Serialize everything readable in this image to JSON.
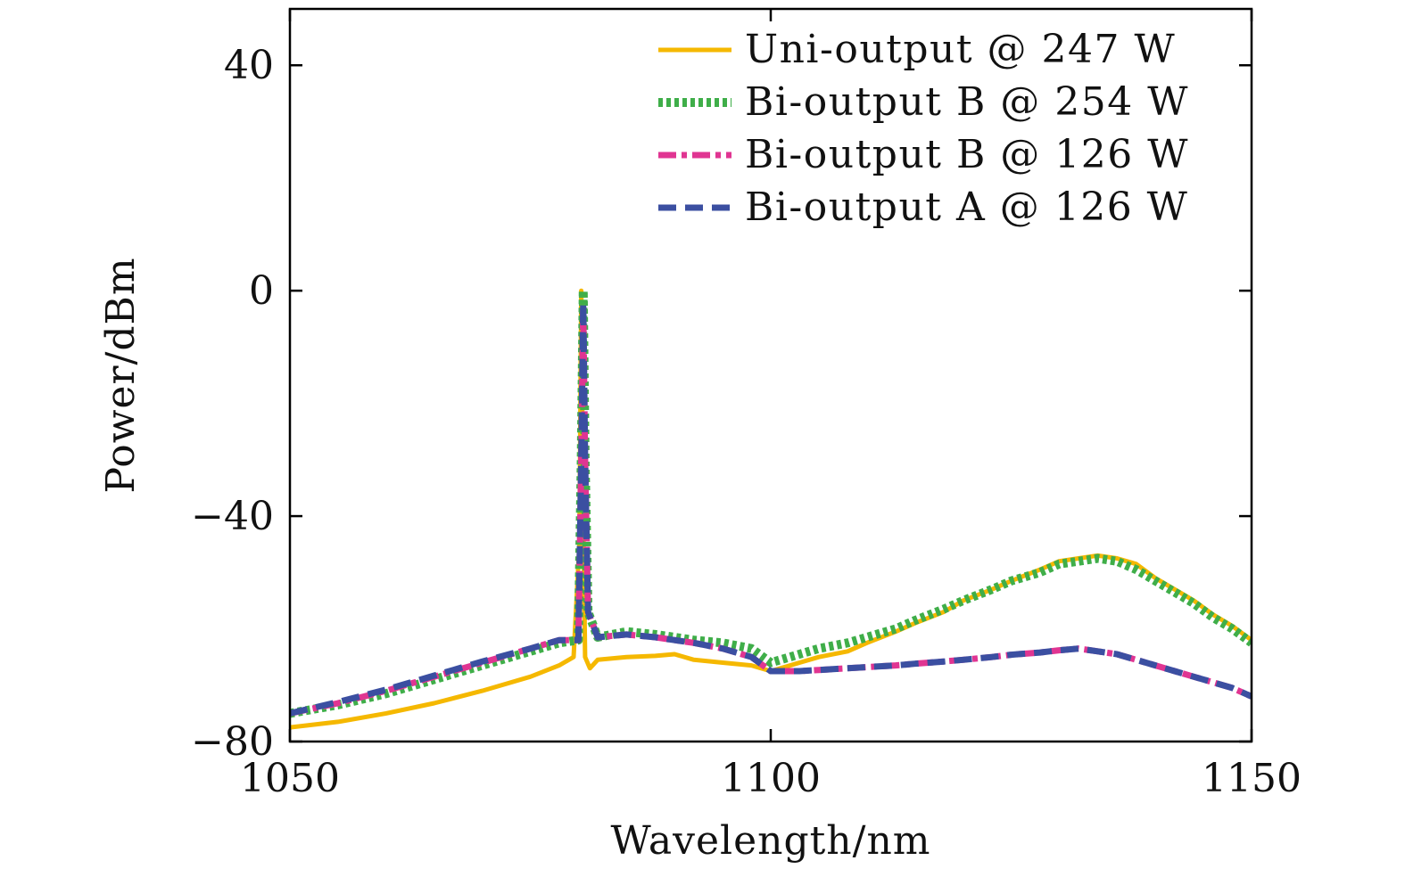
{
  "chart_data": {
    "type": "line",
    "title": "",
    "xlabel": "Wavelength/nm",
    "ylabel": "Power/dBm",
    "xlim": [
      1050,
      1150
    ],
    "ylim": [
      -80,
      50
    ],
    "xticks": [
      1050,
      1100,
      1150
    ],
    "xtick_labels": [
      "1050",
      "1100",
      "1150"
    ],
    "yticks": [
      -80,
      -40,
      0,
      40
    ],
    "ytick_labels": [
      "−80",
      "−40",
      "0",
      "40"
    ],
    "grid": false,
    "legend_position": "top-right",
    "series": [
      {
        "name": "Uni-output @ 247 W",
        "color": "#f5b800",
        "dash": "solid",
        "x": [
          1050,
          1055,
          1060,
          1065,
          1070,
          1075,
          1078,
          1079.5,
          1080.1,
          1080.3,
          1080.5,
          1080.7,
          1081.2,
          1082,
          1085,
          1088,
          1090,
          1092,
          1095,
          1098,
          1100,
          1103,
          1105,
          1108,
          1110,
          1113,
          1115,
          1118,
          1120,
          1123,
          1125,
          1128,
          1130,
          1132,
          1134,
          1136,
          1138,
          1140,
          1142,
          1144,
          1146,
          1148,
          1150
        ],
        "y": [
          -77.5,
          -76.5,
          -75,
          -73.2,
          -71,
          -68.5,
          -66.5,
          -65,
          -45,
          0,
          -40,
          -65,
          -67,
          -65.5,
          -65,
          -64.8,
          -64.5,
          -65.5,
          -66,
          -66.5,
          -67.5,
          -66,
          -65,
          -64,
          -62.5,
          -60.5,
          -59,
          -57,
          -55,
          -53,
          -51.5,
          -49.5,
          -48,
          -47.5,
          -47,
          -47.5,
          -48.5,
          -51,
          -53,
          -55,
          -57.5,
          -59.5,
          -62
        ]
      },
      {
        "name": "Bi-output B @ 254 W",
        "color": "#3fae49",
        "dash": "dotted",
        "x": [
          1050,
          1055,
          1060,
          1065,
          1070,
          1075,
          1078,
          1080,
          1080.3,
          1080.5,
          1080.7,
          1081,
          1082,
          1085,
          1088,
          1090,
          1092,
          1095,
          1098,
          1100,
          1103,
          1105,
          1108,
          1110,
          1113,
          1115,
          1118,
          1120,
          1123,
          1125,
          1128,
          1130,
          1132,
          1134,
          1136,
          1138,
          1140,
          1142,
          1144,
          1146,
          1148,
          1150
        ],
        "y": [
          -75,
          -73.5,
          -71.5,
          -69,
          -66.5,
          -64,
          -62.5,
          -62,
          -30,
          0,
          -30,
          -57,
          -61.5,
          -60.5,
          -61,
          -61.5,
          -62,
          -62.5,
          -63.5,
          -66,
          -64.5,
          -63.5,
          -62.5,
          -61.5,
          -60,
          -58.5,
          -56.5,
          -55,
          -53,
          -51.5,
          -50,
          -48.5,
          -48,
          -47.5,
          -48,
          -49.5,
          -51.5,
          -53.5,
          -55.5,
          -58,
          -60,
          -62.5
        ]
      },
      {
        "name": "Bi-output B @ 126 W",
        "color": "#e03592",
        "dash": "dashdot",
        "x": [
          1050,
          1055,
          1060,
          1065,
          1070,
          1075,
          1078,
          1080,
          1080.3,
          1080.5,
          1080.7,
          1081,
          1082,
          1085,
          1088,
          1090,
          1092,
          1095,
          1098,
          1100,
          1103,
          1105,
          1108,
          1110,
          1113,
          1115,
          1118,
          1120,
          1123,
          1125,
          1128,
          1130,
          1132,
          1134,
          1136,
          1138,
          1140,
          1142,
          1144,
          1146,
          1148,
          1150
        ],
        "y": [
          -75,
          -73.2,
          -71,
          -68.5,
          -66,
          -63.5,
          -62,
          -62,
          -30,
          -3,
          -30,
          -57,
          -61.5,
          -61,
          -61.5,
          -62,
          -62.5,
          -63.5,
          -65,
          -67.5,
          -67.5,
          -67.3,
          -67,
          -66.8,
          -66.5,
          -66.2,
          -65.8,
          -65.5,
          -65,
          -64.6,
          -64.2,
          -63.8,
          -63.5,
          -64,
          -64.5,
          -65.5,
          -66.5,
          -67.5,
          -68.5,
          -69.5,
          -70.5,
          -72
        ]
      },
      {
        "name": "Bi-output A @ 126 W",
        "color": "#3b4fa1",
        "dash": "dashed",
        "x": [
          1050,
          1055,
          1060,
          1065,
          1070,
          1075,
          1078,
          1080,
          1080.3,
          1080.5,
          1080.7,
          1081,
          1082,
          1085,
          1088,
          1090,
          1092,
          1095,
          1098,
          1100,
          1103,
          1105,
          1108,
          1110,
          1113,
          1115,
          1118,
          1120,
          1123,
          1125,
          1128,
          1130,
          1132,
          1134,
          1136,
          1138,
          1140,
          1142,
          1144,
          1146,
          1148,
          1150
        ],
        "y": [
          -75,
          -73,
          -70.8,
          -68.3,
          -65.8,
          -63.5,
          -62,
          -62,
          -30,
          -2,
          -30,
          -57,
          -61.5,
          -61,
          -61.5,
          -62,
          -62.5,
          -63.5,
          -65,
          -67.5,
          -67.5,
          -67.3,
          -67,
          -66.8,
          -66.5,
          -66.2,
          -65.8,
          -65.5,
          -65,
          -64.6,
          -64.2,
          -63.8,
          -63.5,
          -64,
          -64.5,
          -65.5,
          -66.5,
          -67.5,
          -68.5,
          -69.5,
          -70.5,
          -72
        ]
      }
    ]
  }
}
